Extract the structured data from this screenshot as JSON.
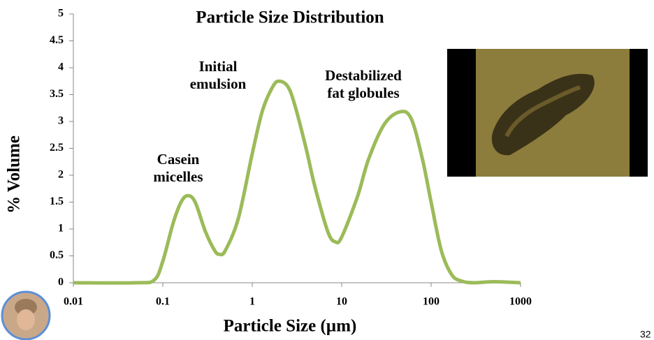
{
  "chart_data": {
    "type": "line",
    "title": "Particle Size Distribution",
    "x_label": "Particle Size (µm)",
    "y_label": "% Volume",
    "xscale": "log",
    "x": [
      0.01,
      0.05,
      0.08,
      0.1,
      0.13,
      0.16,
      0.19,
      0.23,
      0.3,
      0.38,
      0.43,
      0.5,
      0.7,
      1,
      1.3,
      1.7,
      2,
      2.5,
      3,
      4,
      5,
      7,
      8.5,
      10,
      15,
      20,
      30,
      45,
      60,
      80,
      100,
      130,
      170,
      220,
      300,
      500,
      1000
    ],
    "series": [
      {
        "color": "#9bbb59",
        "values": [
          0,
          0,
          0.05,
          0.4,
          1.1,
          1.5,
          1.62,
          1.5,
          0.95,
          0.6,
          0.53,
          0.6,
          1.2,
          2.4,
          3.2,
          3.65,
          3.75,
          3.65,
          3.3,
          2.5,
          1.8,
          0.95,
          0.76,
          0.85,
          1.6,
          2.3,
          2.95,
          3.18,
          3.05,
          2.3,
          1.5,
          0.6,
          0.15,
          0.03,
          0,
          0.02,
          0
        ]
      }
    ],
    "xlim": [
      0.01,
      1000
    ],
    "xticks": [
      0.01,
      0.1,
      1,
      10,
      100,
      1000
    ],
    "ylim": [
      0,
      5
    ],
    "yticks": [
      0,
      0.5,
      1,
      1.5,
      2,
      2.5,
      3,
      3.5,
      4,
      4.5,
      5
    ],
    "grid": false,
    "annotations": [
      [
        "Casein",
        "micelles"
      ],
      [
        "Initial",
        "emulsion"
      ],
      [
        "Destabilized",
        "fat globules"
      ]
    ],
    "page_number": "32"
  }
}
